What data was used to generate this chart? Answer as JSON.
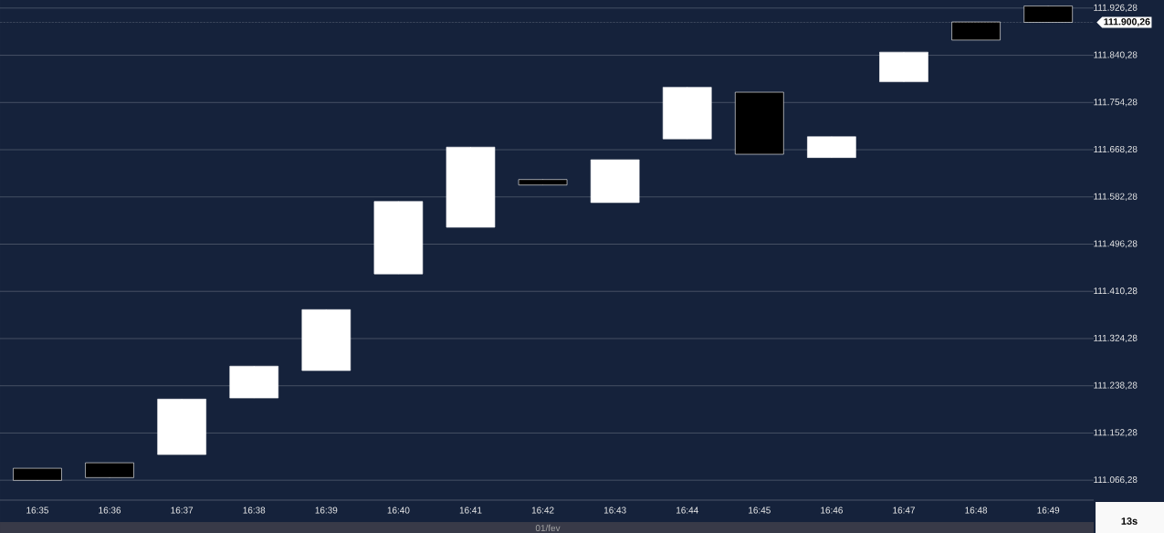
{
  "chart_data": {
    "type": "candlestick",
    "categories": [
      "16:35",
      "16:36",
      "16:37",
      "16:38",
      "16:39",
      "16:40",
      "16:41",
      "16:42",
      "16:43",
      "16:44",
      "16:45",
      "16:46",
      "16:47",
      "16:48",
      "16:49"
    ],
    "ohlc": [
      [
        111088,
        111088,
        111066,
        111066
      ],
      [
        111098,
        111098,
        111071,
        111071
      ],
      [
        111113,
        111214,
        111113,
        111214
      ],
      [
        111216,
        111274,
        111216,
        111274
      ],
      [
        111266,
        111377,
        111266,
        111377
      ],
      [
        111442,
        111574,
        111442,
        111574
      ],
      [
        111527,
        111673,
        111527,
        111673
      ],
      [
        111614,
        111614,
        111604,
        111604
      ],
      [
        111572,
        111650,
        111572,
        111650
      ],
      [
        111688,
        111782,
        111688,
        111782
      ],
      [
        111773,
        111773,
        111660,
        111660
      ],
      [
        111654,
        111692,
        111654,
        111692
      ],
      [
        111792,
        111846,
        111792,
        111846
      ],
      [
        111901,
        111901,
        111868,
        111868
      ],
      [
        111930,
        111930,
        111900.26,
        111900.26
      ]
    ],
    "ylim": [
      111030,
      111941
    ],
    "yticks": [
      {
        "value": 111066.28,
        "label": "111.066,28"
      },
      {
        "value": 111152.28,
        "label": "111.152,28"
      },
      {
        "value": 111238.28,
        "label": "111.238,28"
      },
      {
        "value": 111324.28,
        "label": "111.324,28"
      },
      {
        "value": 111410.28,
        "label": "111.410,28"
      },
      {
        "value": 111496.28,
        "label": "111.496,28"
      },
      {
        "value": 111582.28,
        "label": "111.582,28"
      },
      {
        "value": 111668.28,
        "label": "111.668,28"
      },
      {
        "value": 111754.28,
        "label": "111.754,28"
      },
      {
        "value": 111840.28,
        "label": "111.840,28"
      },
      {
        "value": 111926.28,
        "label": "111.926,28"
      }
    ],
    "grid": "y",
    "ref_lines": [
      {
        "axis": "y",
        "value": 111900.26,
        "label": "111.900,26"
      }
    ],
    "annotations": [
      "01/fev",
      "13s"
    ]
  }
}
